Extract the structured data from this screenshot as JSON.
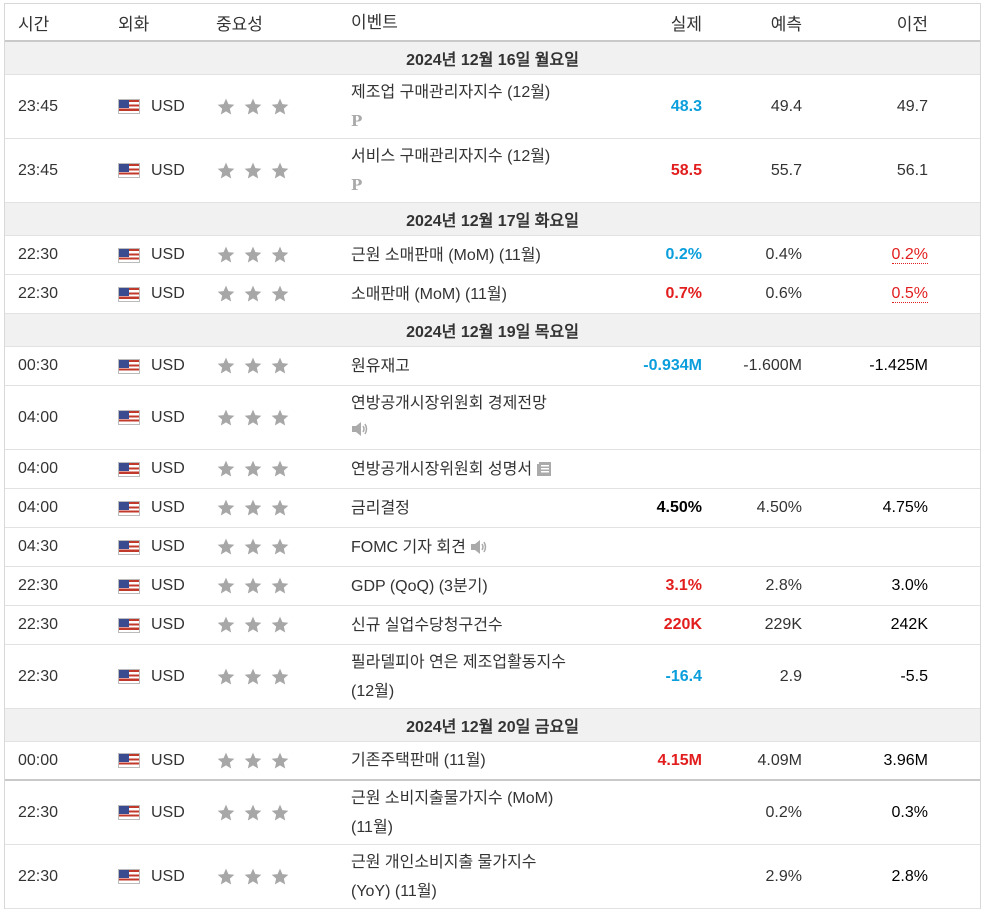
{
  "header": {
    "time": "시간",
    "currency": "외화",
    "importance": "중요성",
    "event": "이벤트",
    "actual": "실제",
    "forecast": "예측",
    "previous": "이전"
  },
  "colors": {
    "green": "#0a9edc",
    "red": "#e21d1d",
    "date_bg": "#f1f1f1"
  },
  "dates": [
    "2024년 12월 16일 월요일",
    "2024년 12월 17일 화요일",
    "2024년 12월 19일 목요일",
    "2024년 12월 20일 금요일"
  ],
  "rows": [
    {
      "time": "23:45",
      "currency": "USD",
      "event": "제조업 구매관리자지수 (12월)",
      "event2": "",
      "icon": "preliminary-icon",
      "actual": "48.3",
      "forecast": "49.4",
      "previous": "49.7"
    },
    {
      "time": "23:45",
      "currency": "USD",
      "event": "서비스 구매관리자지수 (12월)",
      "event2": "",
      "icon": "preliminary-icon",
      "actual": "58.5",
      "forecast": "55.7",
      "previous": "56.1"
    },
    {
      "time": "22:30",
      "currency": "USD",
      "event": "근원 소매판매 (MoM) (11월)",
      "event2": "",
      "icon": "",
      "actual": "0.2%",
      "forecast": "0.4%",
      "previous": "0.2%"
    },
    {
      "time": "22:30",
      "currency": "USD",
      "event": "소매판매 (MoM) (11월)",
      "event2": "",
      "icon": "",
      "actual": "0.7%",
      "forecast": "0.6%",
      "previous": "0.5%"
    },
    {
      "time": "00:30",
      "currency": "USD",
      "event": "원유재고",
      "event2": "",
      "icon": "",
      "actual": "-0.934M",
      "forecast": "-1.600M",
      "previous": "-1.425M"
    },
    {
      "time": "04:00",
      "currency": "USD",
      "event": "연방공개시장위원회 경제전망",
      "event2": "",
      "icon": "speaker-icon",
      "actual": "",
      "forecast": "",
      "previous": ""
    },
    {
      "time": "04:00",
      "currency": "USD",
      "event": "연방공개시장위원회 성명서",
      "event2": "",
      "icon": "document-icon",
      "actual": "",
      "forecast": "",
      "previous": ""
    },
    {
      "time": "04:00",
      "currency": "USD",
      "event": "금리결정",
      "event2": "",
      "icon": "",
      "actual": "4.50%",
      "forecast": "4.50%",
      "previous": "4.75%"
    },
    {
      "time": "04:30",
      "currency": "USD",
      "event": "FOMC 기자 회견",
      "event2": "",
      "icon": "speaker-icon",
      "actual": "",
      "forecast": "",
      "previous": ""
    },
    {
      "time": "22:30",
      "currency": "USD",
      "event": "GDP (QoQ) (3분기)",
      "event2": "",
      "icon": "",
      "actual": "3.1%",
      "forecast": "2.8%",
      "previous": "3.0%"
    },
    {
      "time": "22:30",
      "currency": "USD",
      "event": "신규 실업수당청구건수",
      "event2": "",
      "icon": "",
      "actual": "220K",
      "forecast": "229K",
      "previous": "242K"
    },
    {
      "time": "22:30",
      "currency": "USD",
      "event": "필라델피아 연은 제조업활동지수",
      "event2": "(12월)",
      "icon": "",
      "actual": "-16.4",
      "forecast": "2.9",
      "previous": "-5.5"
    },
    {
      "time": "00:00",
      "currency": "USD",
      "event": "기존주택판매 (11월)",
      "event2": "",
      "icon": "",
      "actual": "4.15M",
      "forecast": "4.09M",
      "previous": "3.96M"
    },
    {
      "time": "22:30",
      "currency": "USD",
      "event": "근원 소비지출물가지수 (MoM)",
      "event2": "(11월)",
      "icon": "",
      "actual": "",
      "forecast": "0.2%",
      "previous": "0.3%"
    },
    {
      "time": "22:30",
      "currency": "USD",
      "event": "근원 개인소비지출 물가지수",
      "event2": "(YoY) (11월)",
      "icon": "",
      "actual": "",
      "forecast": "2.9%",
      "previous": "2.8%"
    }
  ]
}
